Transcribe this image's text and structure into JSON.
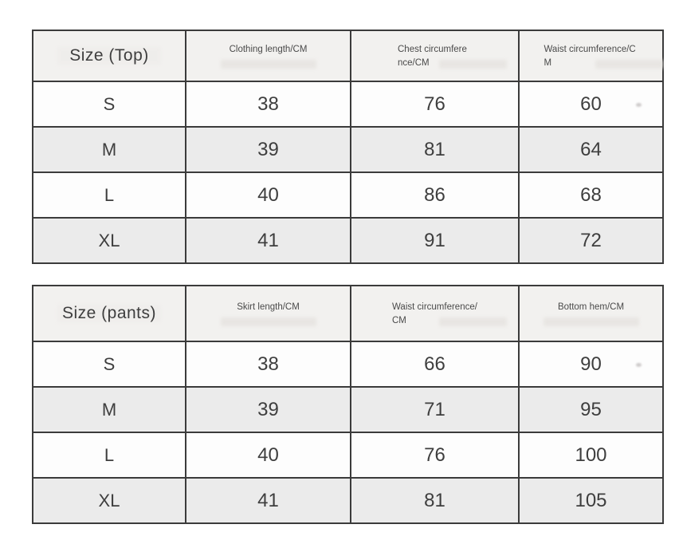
{
  "colors": {
    "border": "#3b3b3b",
    "header_bg": "#f2f1ef",
    "row_white": "#fdfdfd",
    "row_alt": "#ebebeb",
    "text": "#3e3e3e"
  },
  "chart_data": [
    {
      "type": "table",
      "title": "Size (Top)",
      "columns": [
        "Size (Top)",
        "Clothing length/CM",
        "Chest circumference/CM",
        "Waist circumference/CM"
      ],
      "rows": [
        [
          "S",
          "38",
          "76",
          "60"
        ],
        [
          "M",
          "39",
          "81",
          "64"
        ],
        [
          "L",
          "40",
          "86",
          "68"
        ],
        [
          "XL",
          "41",
          "91",
          "72"
        ]
      ]
    },
    {
      "type": "table",
      "title": "Size (pants)",
      "columns": [
        "Size (pants)",
        "Skirt length/CM",
        "Waist circumference/CM",
        "Bottom hem/CM"
      ],
      "rows": [
        [
          "S",
          "38",
          "66",
          "90"
        ],
        [
          "M",
          "39",
          "71",
          "95"
        ],
        [
          "L",
          "40",
          "76",
          "100"
        ],
        [
          "XL",
          "41",
          "81",
          "105"
        ]
      ]
    }
  ]
}
